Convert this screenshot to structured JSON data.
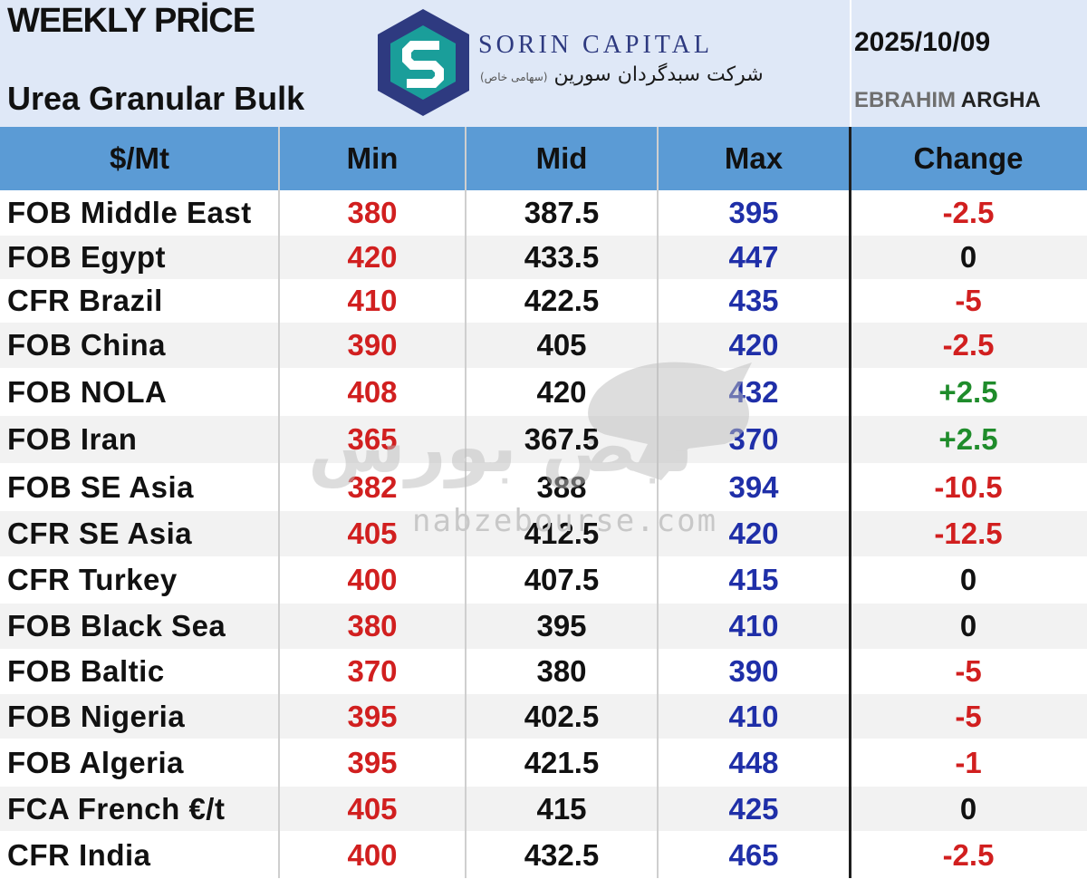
{
  "header": {
    "title": "WEEKLY PRİCE",
    "subtitle": "Urea Granular Bulk",
    "brand_en": "SORIN CAPITAL",
    "brand_fa": "شرکت سبدگردان سورین",
    "brand_fa_small": "(سهامی خاص)",
    "date": "2025/10/09",
    "author_first": "EBRAHIM",
    "author_last": "ARGHA",
    "logo_icon": "sorin-s-logo-icon"
  },
  "table": {
    "columns": [
      "$/Mt",
      "Min",
      "Mid",
      "Max",
      "Change"
    ],
    "rows": [
      {
        "market": "FOB Middle East",
        "min": "380",
        "mid": "387.5",
        "max": "395",
        "change": "-2.5"
      },
      {
        "market": "FOB Egypt",
        "min": "420",
        "mid": "433.5",
        "max": "447",
        "change": "0"
      },
      {
        "market": "CFR Brazil",
        "min": "410",
        "mid": "422.5",
        "max": "435",
        "change": "-5"
      },
      {
        "market": "FOB China",
        "min": "390",
        "mid": "405",
        "max": "420",
        "change": "-2.5"
      },
      {
        "market": "FOB NOLA",
        "min": "408",
        "mid": "420",
        "max": "432",
        "change": "+2.5"
      },
      {
        "market": "FOB Iran",
        "min": "365",
        "mid": "367.5",
        "max": "370",
        "change": "+2.5"
      },
      {
        "market": "FOB SE Asia",
        "min": "382",
        "mid": "388",
        "max": "394",
        "change": "-10.5"
      },
      {
        "market": "CFR SE Asia",
        "min": "405",
        "mid": "412.5",
        "max": "420",
        "change": "-12.5"
      },
      {
        "market": "CFR Turkey",
        "min": "400",
        "mid": "407.5",
        "max": "415",
        "change": "0"
      },
      {
        "market": "FOB Black Sea",
        "min": "380",
        "mid": "395",
        "max": "410",
        "change": "0"
      },
      {
        "market": "FOB Baltic",
        "min": "370",
        "mid": "380",
        "max": "390",
        "change": "-5"
      },
      {
        "market": "FOB Nigeria",
        "min": "395",
        "mid": "402.5",
        "max": "410",
        "change": "-5"
      },
      {
        "market": "FOB Algeria",
        "min": "395",
        "mid": "421.5",
        "max": "448",
        "change": "-1"
      },
      {
        "market": "FCA French €/t",
        "min": "405",
        "mid": "415",
        "max": "425",
        "change": "0"
      },
      {
        "market": "CFR India",
        "min": "400",
        "mid": "432.5",
        "max": "465",
        "change": "-2.5"
      }
    ]
  },
  "watermark": {
    "text_fa": "نبض بورس",
    "url": "nabzebourse.com",
    "icon": "bull-icon"
  },
  "colors": {
    "header_bg": "#dfe8f7",
    "column_header_bg": "#5b9bd5",
    "min_color": "#d11f1f",
    "max_color": "#1f2fa8",
    "positive_change": "#1f8c2b",
    "negative_change": "#d11f1f",
    "logo_navy": "#2e3a80",
    "logo_teal": "#1a9e9a"
  }
}
